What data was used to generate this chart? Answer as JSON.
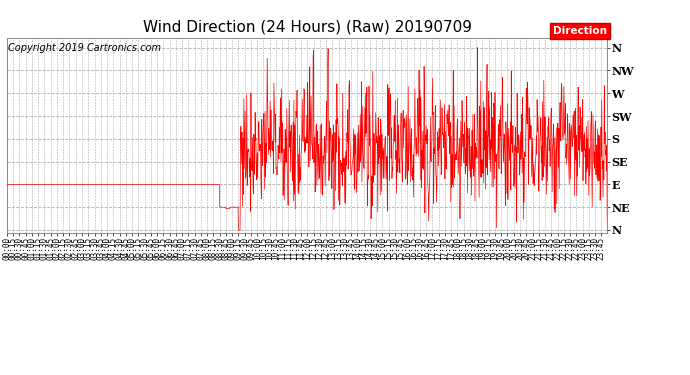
{
  "title": "Wind Direction (24 Hours) (Raw) 20190709",
  "copyright_text": "Copyright 2019 Cartronics.com",
  "legend_label": "Direction",
  "legend_color": "#ff0000",
  "line_color": "#ff0000",
  "background_color": "#ffffff",
  "grid_color": "#b0b0b0",
  "y_ticks": [
    0,
    45,
    90,
    135,
    180,
    225,
    270,
    315,
    360
  ],
  "y_tick_labels": [
    "N",
    "NE",
    "E",
    "SE",
    "S",
    "SW",
    "W",
    "NW",
    "N"
  ],
  "ylim": [
    -5,
    380
  ],
  "title_fontsize": 11,
  "copyright_fontsize": 7,
  "tick_fontsize": 5.5,
  "ytick_fontsize": 8
}
